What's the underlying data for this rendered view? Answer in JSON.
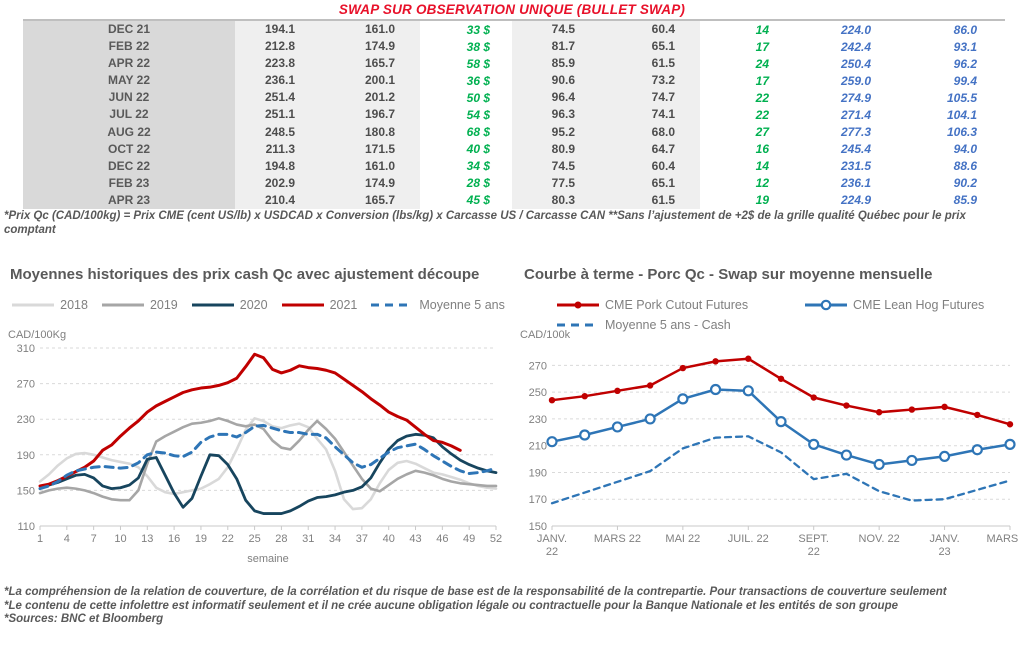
{
  "title": "SWAP SUR OBSERVATION UNIQUE (BULLET SWAP)",
  "colors": {
    "title_red": "#E8112A",
    "green": "#00B050",
    "table_blue": "#4472C4",
    "text_gray": "#595959",
    "axis_gray": "#808080",
    "red_2021": "#C00000",
    "navy_2020": "#17455E",
    "gray_2019": "#A6A6A6",
    "lightgray_2018": "#D9D9D9",
    "blue_dashed": "#2E75B6"
  },
  "table": {
    "rows": [
      [
        "DEC 21",
        "194.1",
        "161.0",
        "33 $",
        "74.5",
        "60.4",
        "14",
        "224.0",
        "86.0"
      ],
      [
        "FEB 22",
        "212.8",
        "174.9",
        "38 $",
        "81.7",
        "65.1",
        "17",
        "242.4",
        "93.1"
      ],
      [
        "APR 22",
        "223.8",
        "165.7",
        "58 $",
        "85.9",
        "61.5",
        "24",
        "250.4",
        "96.2"
      ],
      [
        "MAY 22",
        "236.1",
        "200.1",
        "36 $",
        "90.6",
        "73.2",
        "17",
        "259.0",
        "99.4"
      ],
      [
        "JUN 22",
        "251.4",
        "201.2",
        "50 $",
        "96.4",
        "74.7",
        "22",
        "274.9",
        "105.5"
      ],
      [
        "JUL 22",
        "251.1",
        "196.7",
        "54 $",
        "96.3",
        "74.1",
        "22",
        "271.4",
        "104.1"
      ],
      [
        "AUG 22",
        "248.5",
        "180.8",
        "68 $",
        "95.2",
        "68.0",
        "27",
        "277.3",
        "106.3"
      ],
      [
        "OCT 22",
        "211.3",
        "171.5",
        "40 $",
        "80.9",
        "64.7",
        "16",
        "245.4",
        "94.0"
      ],
      [
        "DEC 22",
        "194.8",
        "161.0",
        "34 $",
        "74.5",
        "60.4",
        "14",
        "231.5",
        "88.6"
      ],
      [
        "FEB 23",
        "202.9",
        "174.9",
        "28 $",
        "77.5",
        "65.1",
        "12",
        "236.1",
        "90.2"
      ],
      [
        "APR 23",
        "210.4",
        "165.7",
        "45 $",
        "80.3",
        "61.5",
        "19",
        "224.9",
        "85.9"
      ]
    ]
  },
  "footnote_top": "*Prix Qc (CAD/100kg) = Prix CME (cent US/lb) x USDCAD x Conversion (lbs/kg) x Carcasse US / Carcasse CAN **Sans l’ajustement de +2$ de la grille qualité Québec pour le prix comptant",
  "footnotes_bottom": [
    "*La compréhension de la relation de couverture, de la corrélation et du risque de base est de la responsabilité de la contrepartie. Pour transactions de couverture seulement",
    "*Le contenu de cette infolettre est informatif seulement et il ne crée aucune obligation légale ou contractuelle pour la Banque Nationale et les entités de son groupe",
    "*Sources: BNC et Bloomberg"
  ],
  "chart_data": [
    {
      "type": "line",
      "title": "Moyennes historiques des prix cash Qc avec ajustement découpe",
      "ylabel": "CAD/100Kg",
      "xlabel": "semaine",
      "ylim": [
        110,
        310
      ],
      "yticks": [
        110,
        150,
        190,
        230,
        270,
        310
      ],
      "xlim": [
        1,
        52
      ],
      "xticks": [
        1,
        4,
        7,
        10,
        13,
        16,
        19,
        22,
        25,
        28,
        31,
        34,
        37,
        40,
        43,
        46,
        49,
        52
      ],
      "grid": "dashed",
      "legend_position": "top",
      "series": [
        {
          "name": "2018",
          "color": "#D9D9D9",
          "width": 2.6,
          "values": [
            160,
            168,
            178,
            186,
            191,
            192,
            190,
            187,
            184,
            182,
            180,
            176,
            166,
            153,
            148,
            146,
            148,
            150,
            152,
            157,
            163,
            176,
            196,
            218,
            231,
            228,
            222,
            220,
            223,
            225,
            221,
            208,
            196,
            172,
            140,
            129,
            130,
            140,
            158,
            173,
            181,
            183,
            180,
            175,
            170,
            168,
            165,
            162,
            158,
            155,
            153,
            152
          ]
        },
        {
          "name": "2019",
          "color": "#A6A6A6",
          "width": 2.6,
          "values": [
            147,
            150,
            152,
            153,
            152,
            150,
            147,
            143,
            140,
            139,
            139,
            150,
            180,
            205,
            211,
            216,
            221,
            225,
            226,
            228,
            231,
            228,
            224,
            222,
            224,
            219,
            206,
            198,
            196,
            206,
            218,
            228,
            219,
            208,
            193,
            178,
            163,
            152,
            149,
            156,
            163,
            168,
            172,
            170,
            167,
            163,
            160,
            158,
            157,
            156,
            155,
            155
          ]
        },
        {
          "name": "2020",
          "color": "#17455E",
          "width": 2.8,
          "values": [
            152,
            156,
            159,
            163,
            167,
            168,
            164,
            155,
            152,
            153,
            156,
            164,
            185,
            187,
            167,
            147,
            131,
            141,
            166,
            190,
            189,
            179,
            163,
            139,
            127,
            124,
            124,
            124,
            127,
            132,
            138,
            142,
            143,
            145,
            148,
            150,
            154,
            164,
            181,
            196,
            206,
            211,
            213,
            212,
            209,
            199,
            191,
            184,
            179,
            175,
            172,
            170
          ]
        },
        {
          "name": "2021",
          "color": "#C00000",
          "width": 3,
          "values": [
            155,
            157,
            161,
            166,
            171,
            176,
            183,
            195,
            201,
            211,
            220,
            228,
            238,
            245,
            250,
            255,
            260,
            263,
            265,
            266,
            268,
            271,
            276,
            289,
            303,
            299,
            286,
            282,
            285,
            290,
            288,
            287,
            285,
            282,
            275,
            268,
            261,
            253,
            246,
            238,
            233,
            229,
            221,
            213,
            206,
            204,
            200,
            195
          ]
        },
        {
          "name": "Moyenne 5 ans",
          "color": "#2E75B6",
          "width": 3,
          "dash": "8 6",
          "values": [
            152,
            155,
            160,
            167,
            172,
            174,
            176,
            177,
            176,
            175,
            176,
            181,
            190,
            193,
            192,
            189,
            188,
            193,
            204,
            210,
            213,
            213,
            210,
            215,
            222,
            223,
            220,
            217,
            215,
            215,
            213,
            213,
            209,
            199,
            190,
            181,
            176,
            179,
            186,
            193,
            198,
            200,
            202,
            196,
            189,
            183,
            177,
            172,
            169,
            170,
            172,
            175
          ]
        }
      ]
    },
    {
      "type": "line",
      "title": "Courbe à terme - Porc Qc - Swap sur moyenne mensuelle",
      "ylabel": "CAD/100k",
      "xlabel": "",
      "ylim": [
        150,
        283
      ],
      "yticks": [
        150,
        170,
        190,
        210,
        230,
        250,
        270
      ],
      "xlim": [
        0,
        14
      ],
      "xticks": [
        {
          "pos": 0,
          "label": "JANV.\n22"
        },
        {
          "pos": 2,
          "label": "MARS 22"
        },
        {
          "pos": 4,
          "label": "MAI 22"
        },
        {
          "pos": 6,
          "label": "JUIL. 22"
        },
        {
          "pos": 8,
          "label": "SEPT.\n22"
        },
        {
          "pos": 10,
          "label": "NOV. 22"
        },
        {
          "pos": 12,
          "label": "JANV.\n23"
        },
        {
          "pos": 14,
          "label": "MARS 23"
        }
      ],
      "grid": "dashed",
      "legend_position": "top",
      "series": [
        {
          "name": "CME Pork Cutout Futures",
          "color": "#C00000",
          "width": 2.5,
          "marker": "dot",
          "x_start": 0,
          "values": [
            244,
            247,
            251,
            255,
            268,
            273,
            275,
            260,
            246,
            240,
            235,
            237,
            239,
            233,
            226
          ]
        },
        {
          "name": "CME Lean Hog Futures",
          "color": "#2E75B6",
          "width": 2.5,
          "marker": "circle-open",
          "x_start": 0,
          "values": [
            213,
            218,
            224,
            230,
            245,
            252,
            251,
            228,
            211,
            203,
            196,
            199,
            202,
            207,
            211
          ]
        },
        {
          "name": "Moyenne 5 ans - Cash",
          "color": "#2E75B6",
          "width": 2.3,
          "dash": "6 5",
          "x_start": 0,
          "values": [
            167,
            175,
            183,
            191,
            208,
            216,
            217,
            205,
            185,
            189,
            176,
            169,
            170,
            177,
            184
          ]
        }
      ]
    }
  ]
}
